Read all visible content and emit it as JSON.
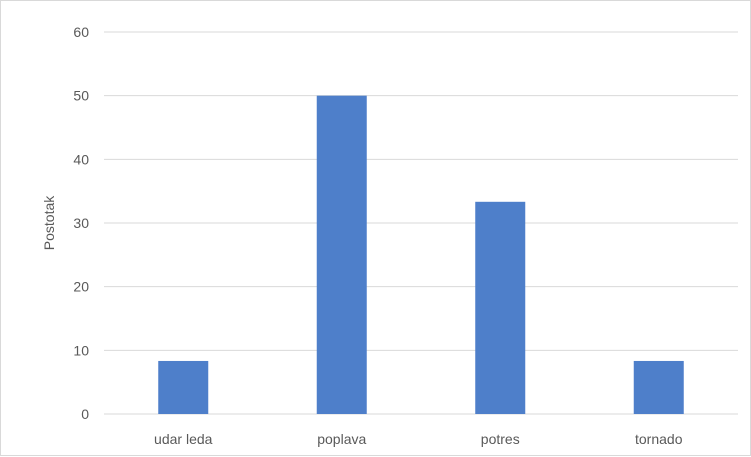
{
  "chart_data": {
    "type": "bar",
    "title": "",
    "xlabel": "",
    "ylabel": "Postotak",
    "categories": [
      "udar leda",
      "poplava",
      "potres",
      "tornado"
    ],
    "series": [
      {
        "values": [
          8.33,
          50,
          33.33,
          8.33
        ],
        "color": "#4e7fca"
      }
    ],
    "ylim": [
      0,
      60
    ],
    "yticks": [
      0,
      10,
      20,
      30,
      40,
      50,
      60
    ],
    "grid": true,
    "legend": "none"
  }
}
